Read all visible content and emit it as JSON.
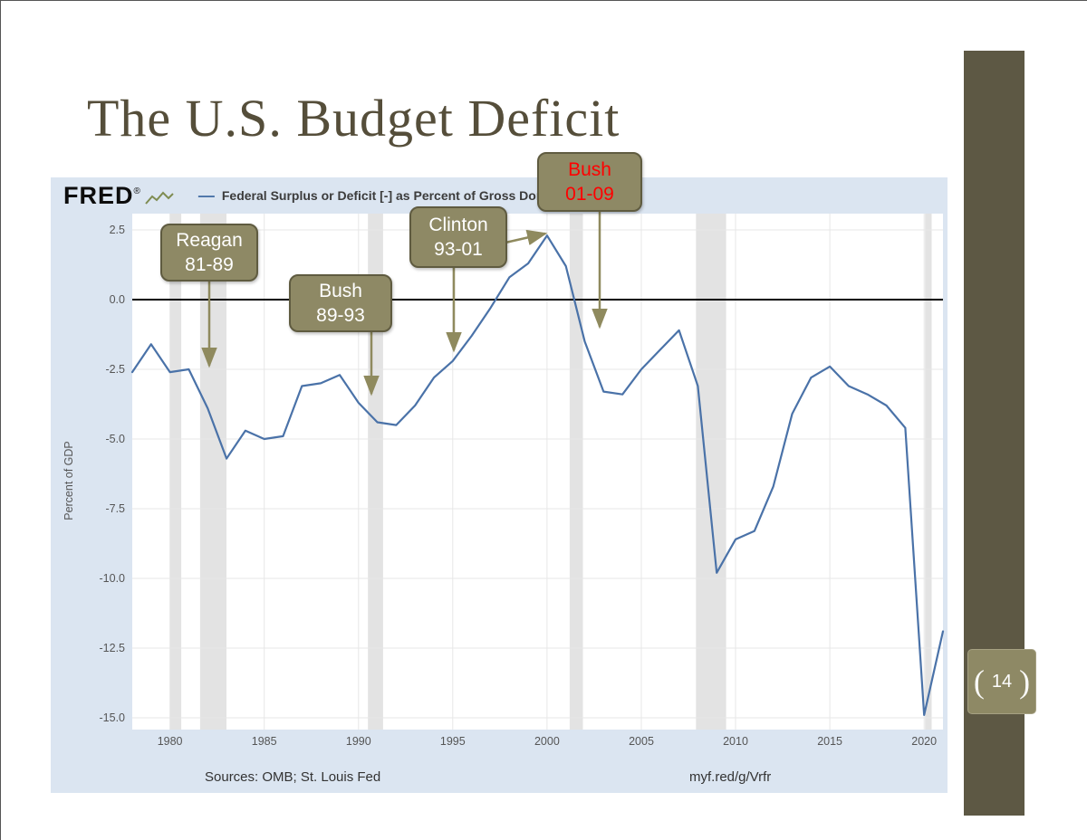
{
  "slide": {
    "title": "The U.S. Budget Deficit",
    "page_number": "14",
    "bracket_left": "(",
    "bracket_right": ")"
  },
  "fred_header": {
    "logo": "FRED",
    "registered": "®",
    "legend_swatch": "—",
    "legend_label": "Federal Surplus or Deficit [-] as Percent of Gross Domestic Product"
  },
  "footer": {
    "sources": "Sources: OMB; St. Louis Fed",
    "short_url": "myf.red/g/Vrfr"
  },
  "callouts": [
    {
      "line1": "Reagan",
      "line2": "81-89",
      "text_color": "#ffffff"
    },
    {
      "line1": "Bush",
      "line2": "89-93",
      "text_color": "#ffffff"
    },
    {
      "line1": "Clinton",
      "line2": "93-01",
      "text_color": "#ffffff"
    },
    {
      "line1": "Bush",
      "line2": "01-09",
      "text_color": "#ff0000"
    }
  ],
  "colors": {
    "title": "#554e3a",
    "sidebar": "#5d5844",
    "callout_bg": "#8e8965",
    "arrow": "#8f8a5e",
    "chart_bg": "#dbe5f1"
  },
  "chart_data": {
    "type": "line",
    "title": "Federal Surplus or Deficit [-] as Percent of Gross Domestic Product",
    "xlabel": "",
    "ylabel": "Percent of GDP",
    "x": [
      1978,
      1979,
      1980,
      1981,
      1982,
      1983,
      1984,
      1985,
      1986,
      1987,
      1988,
      1989,
      1990,
      1991,
      1992,
      1993,
      1994,
      1995,
      1996,
      1997,
      1998,
      1999,
      2000,
      2001,
      2002,
      2003,
      2004,
      2005,
      2006,
      2007,
      2008,
      2009,
      2010,
      2011,
      2012,
      2013,
      2014,
      2015,
      2016,
      2017,
      2018,
      2019,
      2020,
      2021
    ],
    "values": [
      -2.6,
      -1.6,
      -2.6,
      -2.5,
      -3.9,
      -5.7,
      -4.7,
      -5.0,
      -4.9,
      -3.1,
      -3.0,
      -2.7,
      -3.7,
      -4.4,
      -4.5,
      -3.8,
      -2.8,
      -2.2,
      -1.3,
      -0.3,
      0.8,
      1.3,
      2.3,
      1.2,
      -1.5,
      -3.3,
      -3.4,
      -2.5,
      -1.8,
      -1.1,
      -3.1,
      -9.8,
      -8.6,
      -8.3,
      -6.7,
      -4.1,
      -2.8,
      -2.4,
      -3.1,
      -3.4,
      -3.8,
      -4.6,
      -14.9,
      -11.9
    ],
    "ylim": [
      -15.0,
      2.5
    ],
    "yticks": [
      2.5,
      0.0,
      -2.5,
      -5.0,
      -7.5,
      -10.0,
      -12.5,
      -15.0
    ],
    "xticks": [
      1980,
      1985,
      1990,
      1995,
      2000,
      2005,
      2010,
      2015,
      2020
    ],
    "grid": true,
    "legend_position": "top",
    "line_color": "#4a72a8",
    "zero_line_color": "#000000",
    "recession_color": "#e3e3e3",
    "recessions": [
      [
        1980.0,
        1980.6
      ],
      [
        1981.6,
        1983.0
      ],
      [
        1990.5,
        1991.3
      ],
      [
        2001.2,
        2001.9
      ],
      [
        2007.9,
        2009.5
      ],
      [
        2020.05,
        2020.4
      ]
    ],
    "annotations": [
      "Reagan 81-89",
      "Bush 89-93",
      "Clinton 93-01",
      "Bush 01-09"
    ]
  }
}
